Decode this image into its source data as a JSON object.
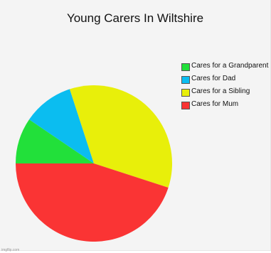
{
  "chart_data": {
    "type": "pie",
    "title": "Young Carers In Wiltshire",
    "categories": [
      "Cares for a Grandparent",
      "Cares for Dad",
      "Cares for a Sibling",
      "Cares for Mum"
    ],
    "values": [
      9.5,
      10.5,
      35,
      45
    ],
    "colors": [
      "#22e03a",
      "#0bbdf0",
      "#e8ef0a",
      "#fa3434"
    ],
    "legend": {
      "placement": "right",
      "entries": [
        "Cares for a Grandparent",
        "Cares for Dad",
        "Cares for a Sibling",
        "Cares for Mum"
      ]
    }
  },
  "watermark": "imgflip.com"
}
